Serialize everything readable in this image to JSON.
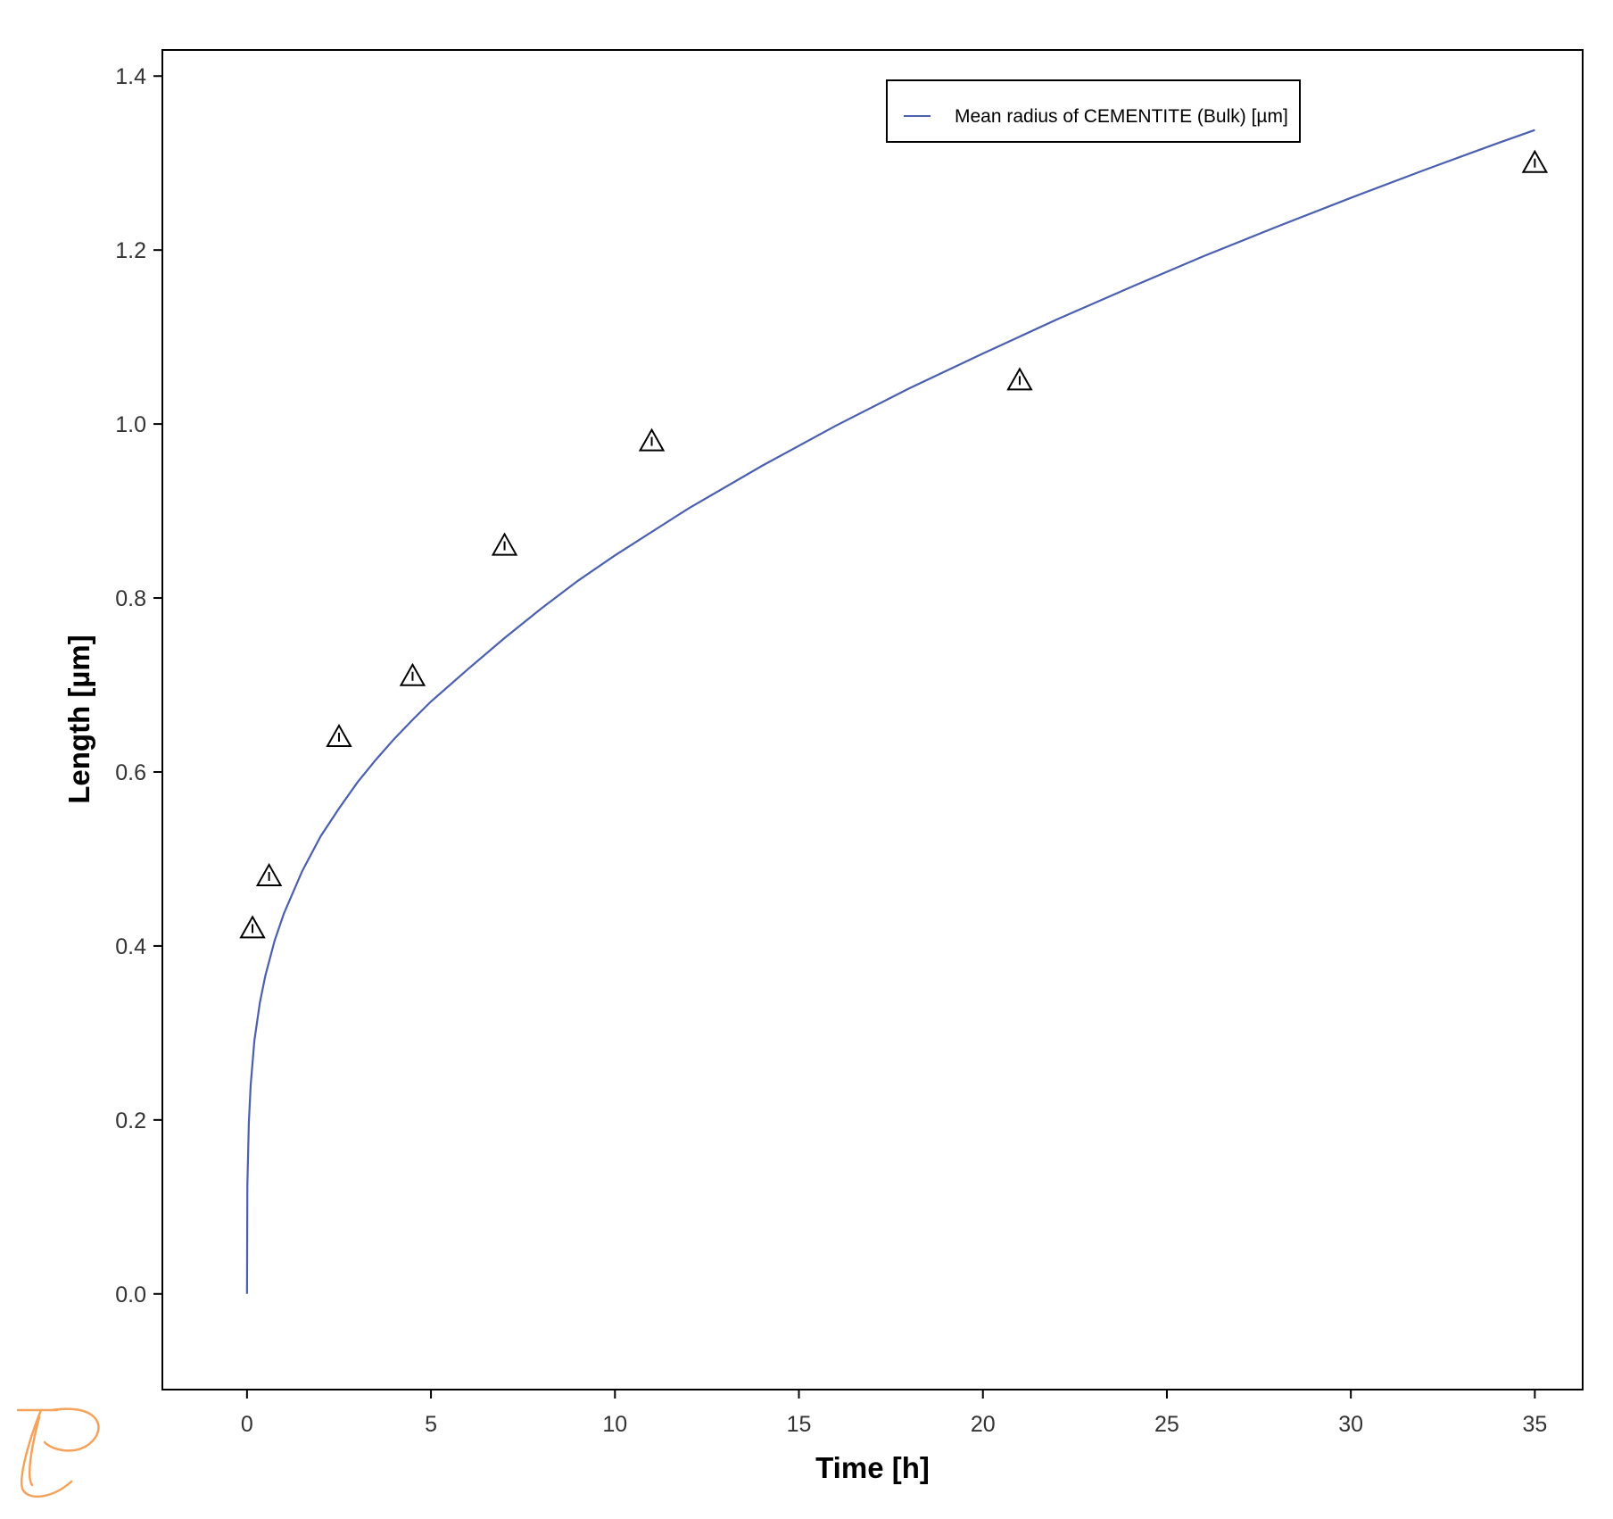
{
  "chart_data": {
    "type": "line",
    "xlabel": "Time [h]",
    "ylabel": "Length [µm]",
    "xlim": [
      -2.3,
      36.3
    ],
    "ylim": [
      -0.11,
      1.43
    ],
    "x_ticks": [
      0,
      5,
      10,
      15,
      20,
      25,
      30,
      35
    ],
    "x_tick_labels": [
      "0",
      "5",
      "10",
      "15",
      "20",
      "25",
      "30",
      "35"
    ],
    "y_ticks": [
      0.0,
      0.2,
      0.4,
      0.6,
      0.8,
      1.0,
      1.2,
      1.4
    ],
    "y_tick_labels": [
      "0.0",
      "0.2",
      "0.4",
      "0.6",
      "0.8",
      "1.0",
      "1.2",
      "1.4"
    ],
    "grid": false,
    "legend_position": "top-right",
    "series": [
      {
        "name": "Mean radius of CEMENTITE (Bulk) [µm]",
        "kind": "line",
        "color": "#4a5fb0",
        "x": [
          0,
          0.01,
          0.05,
          0.1,
          0.2,
          0.35,
          0.5,
          0.75,
          1,
          1.5,
          2,
          2.5,
          3,
          3.5,
          4,
          4.5,
          5,
          6,
          7,
          8,
          9,
          10,
          12,
          14,
          16,
          18,
          20,
          22,
          24,
          26,
          28,
          30,
          32,
          34,
          35
        ],
        "y": [
          0.0,
          0.125,
          0.197,
          0.24,
          0.291,
          0.335,
          0.366,
          0.406,
          0.437,
          0.486,
          0.526,
          0.558,
          0.588,
          0.614,
          0.638,
          0.66,
          0.681,
          0.718,
          0.754,
          0.788,
          0.82,
          0.849,
          0.903,
          0.952,
          0.998,
          1.041,
          1.081,
          1.12,
          1.157,
          1.193,
          1.227,
          1.26,
          1.292,
          1.323,
          1.338
        ]
      },
      {
        "name": "",
        "kind": "scatter",
        "marker": "triangle-warning",
        "color": "#000000",
        "x": [
          0.15,
          0.6,
          2.5,
          4.5,
          7,
          11,
          21,
          35
        ],
        "y": [
          0.42,
          0.48,
          0.64,
          0.71,
          0.86,
          0.98,
          1.05,
          1.3
        ]
      }
    ]
  },
  "legend": {
    "entries": [
      "Mean radius of CEMENTITE (Bulk) [µm]"
    ]
  },
  "logo": {
    "icon": "thermo-calc-logo-icon",
    "color": "#f5a25a"
  }
}
